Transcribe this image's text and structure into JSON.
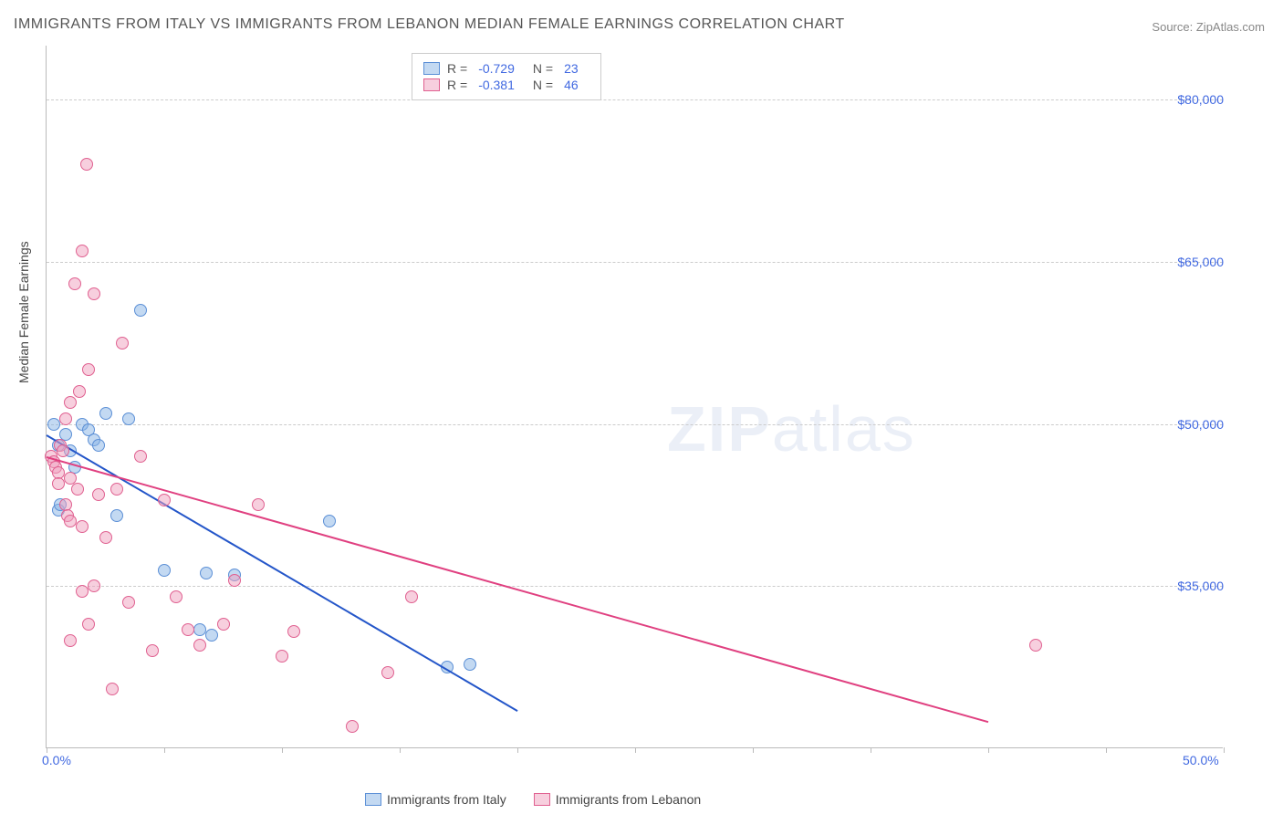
{
  "title": "IMMIGRANTS FROM ITALY VS IMMIGRANTS FROM LEBANON MEDIAN FEMALE EARNINGS CORRELATION CHART",
  "source_label": "Source:",
  "source_value": "ZipAtlas.com",
  "ylabel": "Median Female Earnings",
  "watermark_bold": "ZIP",
  "watermark_light": "atlas",
  "chart": {
    "type": "scatter",
    "background_color": "#ffffff",
    "grid_color": "#cccccc",
    "axis_color": "#bbbbbb",
    "text_color": "#555555",
    "tick_color": "#4169e1",
    "xlim": [
      0,
      50
    ],
    "ylim": [
      20000,
      85000
    ],
    "yticks": [
      {
        "v": 35000,
        "label": "$35,000"
      },
      {
        "v": 50000,
        "label": "$50,000"
      },
      {
        "v": 65000,
        "label": "$65,000"
      },
      {
        "v": 80000,
        "label": "$80,000"
      }
    ],
    "xticks": [
      {
        "v": 0,
        "label": "0.0%"
      },
      {
        "v": 50,
        "label": "50.0%"
      }
    ],
    "xtick_marks": [
      0,
      5,
      10,
      15,
      20,
      25,
      30,
      35,
      40,
      45,
      50
    ],
    "series": [
      {
        "name": "Immigrants from Italy",
        "fill": "rgba(135,180,230,0.5)",
        "stroke": "#5b8fd6",
        "line_color": "#2456c9",
        "R": "-0.729",
        "N": "23",
        "marker_r": 7,
        "trend": {
          "x1": 0,
          "y1": 49000,
          "x2": 20,
          "y2": 23500
        },
        "points": [
          [
            0.3,
            50000
          ],
          [
            0.5,
            48000
          ],
          [
            0.5,
            42000
          ],
          [
            0.6,
            42500
          ],
          [
            0.8,
            49000
          ],
          [
            1.0,
            47500
          ],
          [
            1.2,
            46000
          ],
          [
            1.5,
            50000
          ],
          [
            1.8,
            49500
          ],
          [
            2.0,
            48500
          ],
          [
            2.2,
            48000
          ],
          [
            2.5,
            51000
          ],
          [
            3.0,
            41500
          ],
          [
            3.5,
            50500
          ],
          [
            4.0,
            60500
          ],
          [
            5.0,
            36500
          ],
          [
            6.5,
            31000
          ],
          [
            6.8,
            36200
          ],
          [
            7.0,
            30500
          ],
          [
            8.0,
            36000
          ],
          [
            12.0,
            41000
          ],
          [
            17.0,
            27500
          ],
          [
            18.0,
            27800
          ]
        ]
      },
      {
        "name": "Immigrants from Lebanon",
        "fill": "rgba(240,160,190,0.5)",
        "stroke": "#e06090",
        "line_color": "#e04080",
        "R": "-0.381",
        "N": "46",
        "marker_r": 7,
        "trend": {
          "x1": 0,
          "y1": 47000,
          "x2": 40,
          "y2": 22500
        },
        "points": [
          [
            0.2,
            47000
          ],
          [
            0.3,
            46500
          ],
          [
            0.4,
            46000
          ],
          [
            0.5,
            45500
          ],
          [
            0.5,
            44500
          ],
          [
            0.6,
            48000
          ],
          [
            0.7,
            47500
          ],
          [
            0.8,
            50500
          ],
          [
            0.8,
            42500
          ],
          [
            0.9,
            41500
          ],
          [
            1.0,
            45000
          ],
          [
            1.0,
            52000
          ],
          [
            1.0,
            30000
          ],
          [
            1.0,
            41000
          ],
          [
            1.2,
            63000
          ],
          [
            1.3,
            44000
          ],
          [
            1.4,
            53000
          ],
          [
            1.5,
            66000
          ],
          [
            1.5,
            34500
          ],
          [
            1.5,
            40500
          ],
          [
            1.7,
            74000
          ],
          [
            1.8,
            55000
          ],
          [
            1.8,
            31500
          ],
          [
            2.0,
            35000
          ],
          [
            2.0,
            62000
          ],
          [
            2.2,
            43500
          ],
          [
            2.5,
            39500
          ],
          [
            2.8,
            25500
          ],
          [
            3.0,
            44000
          ],
          [
            3.2,
            57500
          ],
          [
            3.5,
            33500
          ],
          [
            4.0,
            47000
          ],
          [
            4.5,
            29000
          ],
          [
            5.0,
            43000
          ],
          [
            5.5,
            34000
          ],
          [
            6.0,
            31000
          ],
          [
            6.5,
            29500
          ],
          [
            7.5,
            31500
          ],
          [
            8.0,
            35500
          ],
          [
            9.0,
            42500
          ],
          [
            10.0,
            28500
          ],
          [
            10.5,
            30800
          ],
          [
            13.0,
            22000
          ],
          [
            14.5,
            27000
          ],
          [
            15.5,
            34000
          ],
          [
            42.0,
            29500
          ]
        ]
      }
    ]
  },
  "legend_bottom": [
    {
      "label": "Immigrants from Italy",
      "fill": "rgba(135,180,230,0.5)",
      "stroke": "#5b8fd6"
    },
    {
      "label": "Immigrants from Lebanon",
      "fill": "rgba(240,160,190,0.5)",
      "stroke": "#e06090"
    }
  ]
}
